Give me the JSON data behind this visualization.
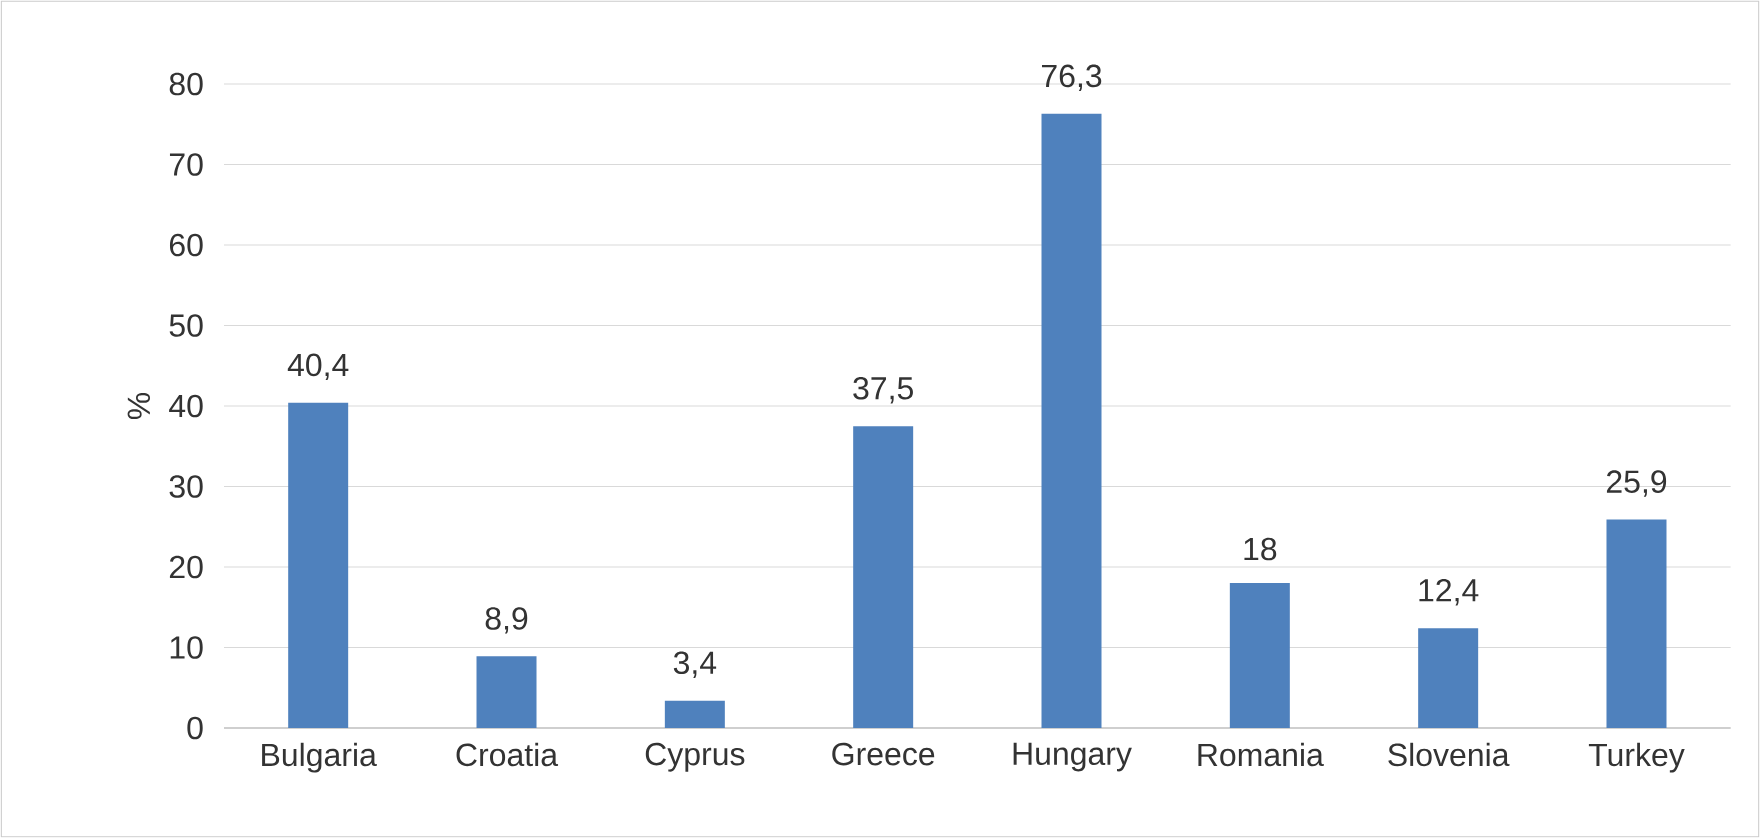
{
  "chart_data": {
    "type": "bar",
    "ylabel": "%",
    "categories": [
      "Bulgaria",
      "Croatia",
      "Cyprus",
      "Greece",
      "Hungary",
      "Romania",
      "Slovenia",
      "Turkey"
    ],
    "values": [
      40.4,
      8.9,
      3.4,
      37.5,
      76.3,
      18,
      12.4,
      25.9
    ],
    "value_labels": [
      "40,4",
      "8,9",
      "3,4",
      "37,5",
      "76,3",
      "18",
      "12,4",
      "25,9"
    ],
    "color": "#4f81bd",
    "ylim": [
      0,
      80
    ],
    "yticks": [
      0,
      10,
      20,
      30,
      40,
      50,
      60,
      70,
      80
    ],
    "grid": "y"
  }
}
